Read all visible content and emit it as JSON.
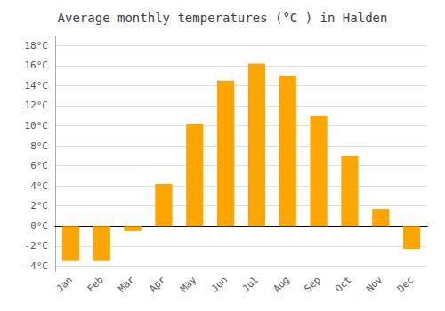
{
  "chart_data": {
    "type": "bar",
    "title": "Average monthly temperatures (°C ) in Halden",
    "categories": [
      "Jan",
      "Feb",
      "Mar",
      "Apr",
      "May",
      "Jun",
      "Jul",
      "Aug",
      "Sep",
      "Oct",
      "Nov",
      "Dec"
    ],
    "values": [
      -3.5,
      -3.5,
      -0.5,
      4.2,
      10.2,
      14.5,
      16.2,
      15.0,
      11.0,
      7.0,
      1.7,
      -2.3
    ],
    "color": "#FFA500",
    "ylim": [
      -4.5,
      19.0
    ],
    "yticks": [
      {
        "value": -4,
        "label": "-4°C"
      },
      {
        "value": -2,
        "label": "-2°C"
      },
      {
        "value": 0,
        "label": "0°C"
      },
      {
        "value": 2,
        "label": "2°C"
      },
      {
        "value": 4,
        "label": "4°C"
      },
      {
        "value": 6,
        "label": "6°C"
      },
      {
        "value": 8,
        "label": "8°C"
      },
      {
        "value": 10,
        "label": "10°C"
      },
      {
        "value": 12,
        "label": "12°C"
      },
      {
        "value": 14,
        "label": "14°C"
      },
      {
        "value": 16,
        "label": "16°C"
      },
      {
        "value": 18,
        "label": "18°C"
      }
    ],
    "grid": true
  }
}
